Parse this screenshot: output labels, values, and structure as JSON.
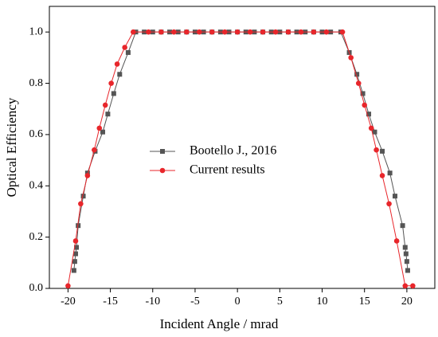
{
  "chart_data": {
    "type": "line",
    "xlabel": "Incident Angle / mrad",
    "ylabel": "Optical Efficiency",
    "xlim": [
      -22.2,
      23.3
    ],
    "ylim": [
      0,
      1.1
    ],
    "xticks": [
      -20,
      -15,
      -10,
      -5,
      0,
      5,
      10,
      15,
      20
    ],
    "yticks": [
      {
        "value": 0,
        "label": "0.0"
      },
      {
        "value": 0.2,
        "label": "0.2"
      },
      {
        "value": 0.4,
        "label": "0.4"
      },
      {
        "value": 0.6,
        "label": "0.6"
      },
      {
        "value": 0.8,
        "label": "0.8"
      },
      {
        "value": 1,
        "label": "1.0"
      }
    ],
    "legend": "center-left",
    "series": [
      {
        "name": "Bootello J., 2016",
        "color": "#555555",
        "marker": "square",
        "x": [
          -19.3,
          -19.2,
          -19.1,
          -19.0,
          -18.8,
          -18.2,
          -17.7,
          -16.8,
          -15.9,
          -15.3,
          -14.6,
          -13.9,
          -12.9,
          -12.0,
          -11,
          -10,
          -9,
          -8,
          -7,
          -6,
          -5,
          -4,
          -3,
          -2,
          -1,
          0,
          1,
          2,
          3,
          4,
          5,
          6,
          7,
          8,
          9,
          10,
          11,
          12.2,
          13.2,
          14.1,
          14.8,
          15.5,
          16.2,
          17.1,
          18.0,
          18.6,
          19.5,
          19.8,
          19.9,
          20.0,
          20.1
        ],
        "values": [
          0.07,
          0.105,
          0.135,
          0.16,
          0.245,
          0.36,
          0.45,
          0.535,
          0.61,
          0.68,
          0.76,
          0.835,
          0.92,
          1,
          1,
          1,
          1,
          1,
          1,
          1,
          1,
          1,
          1,
          1,
          1,
          1,
          1,
          1,
          1,
          1,
          1,
          1,
          1,
          1,
          1,
          1,
          1,
          1,
          0.92,
          0.835,
          0.76,
          0.68,
          0.61,
          0.535,
          0.45,
          0.36,
          0.245,
          0.16,
          0.135,
          0.105,
          0.07
        ]
      },
      {
        "name": "Current results",
        "color": "#e8262b",
        "marker": "circle",
        "x": [
          -20.0,
          -19.1,
          -18.5,
          -17.7,
          -16.9,
          -16.3,
          -15.6,
          -14.9,
          -14.2,
          -13.3,
          -12.3,
          -10.5,
          -9,
          -7.5,
          -6,
          -4.5,
          -3,
          -1.5,
          0,
          1.5,
          3,
          4.5,
          6,
          7.5,
          9,
          10.5,
          12.4,
          13.4,
          14.3,
          15.0,
          15.8,
          16.4,
          17.1,
          17.9,
          18.8,
          19.8,
          20.7
        ],
        "values": [
          0.01,
          0.185,
          0.33,
          0.44,
          0.54,
          0.625,
          0.715,
          0.8,
          0.875,
          0.94,
          1,
          1,
          1,
          1,
          1,
          1,
          1,
          1,
          1,
          1,
          1,
          1,
          1,
          1,
          1,
          1,
          1,
          0.9,
          0.8,
          0.715,
          0.625,
          0.54,
          0.44,
          0.33,
          0.185,
          0.01,
          0.01
        ]
      }
    ]
  }
}
